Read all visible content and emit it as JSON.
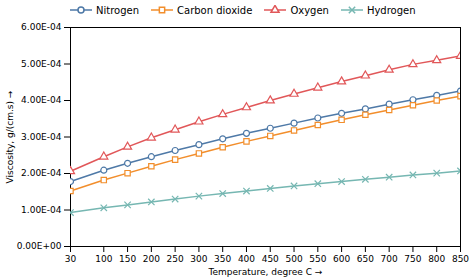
{
  "chart_data": {
    "type": "line",
    "xlabel": "Temperature, degree C",
    "ylabel": "Viscosity, g/(cm.s)",
    "x": [
      30,
      100,
      150,
      200,
      250,
      300,
      350,
      400,
      450,
      500,
      550,
      600,
      650,
      700,
      750,
      800,
      850
    ],
    "series": [
      {
        "name": "Nitrogen",
        "marker": "circle",
        "values": [
          0.000178,
          0.000209,
          0.000228,
          0.000246,
          0.000263,
          0.000279,
          0.000295,
          0.00031,
          0.000324,
          0.000338,
          0.000352,
          0.000365,
          0.000377,
          0.00039,
          0.000402,
          0.000414,
          0.000426
        ]
      },
      {
        "name": "Carbon dioxide",
        "marker": "square",
        "values": [
          0.000152,
          0.000182,
          0.000201,
          0.00022,
          0.000238,
          0.000255,
          0.000272,
          0.000288,
          0.000303,
          0.000318,
          0.000333,
          0.000347,
          0.000361,
          0.000374,
          0.000387,
          0.0004,
          0.000412
        ]
      },
      {
        "name": "Oxygen",
        "marker": "triangle",
        "values": [
          0.000206,
          0.000246,
          0.000273,
          0.000298,
          0.00032,
          0.000342,
          0.000362,
          0.000381,
          0.0004,
          0.000418,
          0.000435,
          0.000452,
          0.000468,
          0.000484,
          0.000499,
          0.00051,
          0.000522
        ]
      },
      {
        "name": "Hydrogen",
        "marker": "x",
        "values": [
          9.3e-05,
          0.000106,
          0.000114,
          0.000122,
          0.00013,
          0.000138,
          0.000145,
          0.000152,
          0.000159,
          0.000166,
          0.000172,
          0.000178,
          0.000184,
          0.00019,
          0.000196,
          0.000201,
          0.000207
        ]
      }
    ],
    "xlim": [
      30,
      850
    ],
    "ylim": [
      0.0,
      0.0006
    ],
    "xticks": [
      30,
      100,
      150,
      200,
      250,
      300,
      350,
      400,
      450,
      500,
      550,
      600,
      650,
      700,
      750,
      800,
      850
    ],
    "yticks": [
      {
        "value": 0.0,
        "label": "0.00E+00"
      },
      {
        "value": 0.0001,
        "label": "1.00E-04"
      },
      {
        "value": 0.0002,
        "label": "2.00E-04"
      },
      {
        "value": 0.0003,
        "label": "3.00E-04"
      },
      {
        "value": 0.0004,
        "label": "4.00E-04"
      },
      {
        "value": 0.0005,
        "label": "5.00E-04"
      },
      {
        "value": 0.0006,
        "label": "6.00E-04"
      }
    ],
    "legend": "upper left",
    "grid": false
  }
}
